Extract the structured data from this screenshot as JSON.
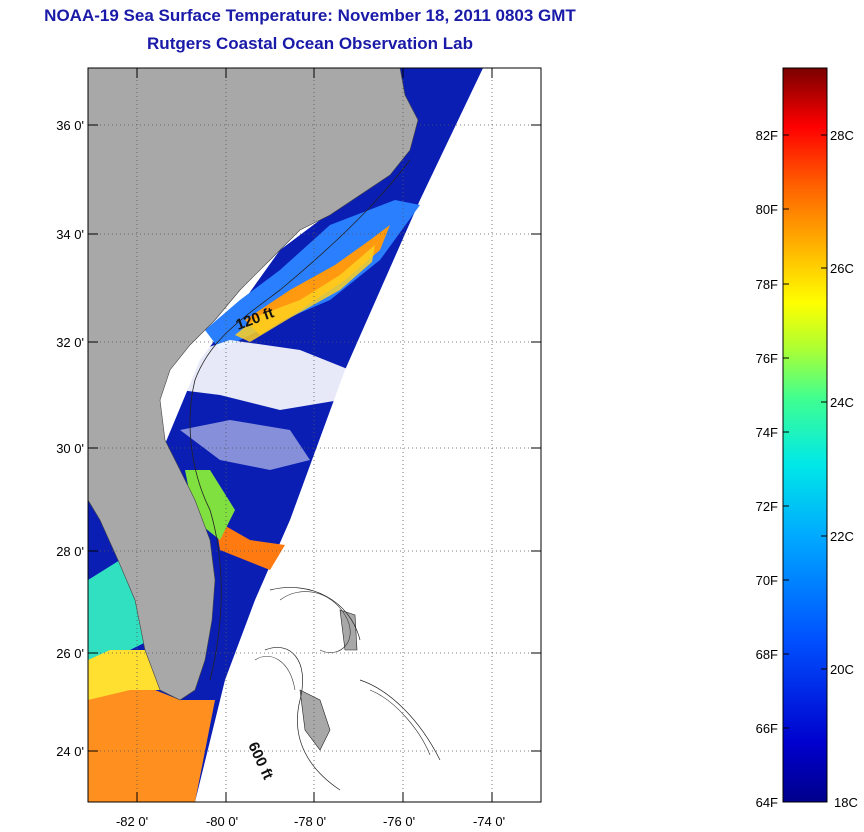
{
  "title": "NOAA-19 Sea Surface Temperature:  November 18, 2011 0803 GMT",
  "subtitle": "Rutgers Coastal Ocean Observation Lab",
  "lat_labels": [
    "36 0'",
    "34 0'",
    "32 0'",
    "30 0'",
    "28 0'",
    "26 0'",
    "24 0'"
  ],
  "lon_labels": [
    "-82 0'",
    "-80 0'",
    "-78 0'",
    "-76 0'",
    "-74 0'"
  ],
  "contour_labels": [
    "120 ft",
    "600 ft"
  ],
  "colorbar": {
    "f_labels": [
      "82F",
      "80F",
      "78F",
      "76F",
      "74F",
      "72F",
      "70F",
      "68F",
      "66F",
      "64F"
    ],
    "c_labels": [
      "28C",
      "26C",
      "24C",
      "22C",
      "20C",
      "18C"
    ]
  },
  "colors": {
    "land": "#a8a8a8",
    "title": "#1a1aa8",
    "cold": "#00008b",
    "warm": "#ff8c00",
    "hot": "#8b0000"
  }
}
